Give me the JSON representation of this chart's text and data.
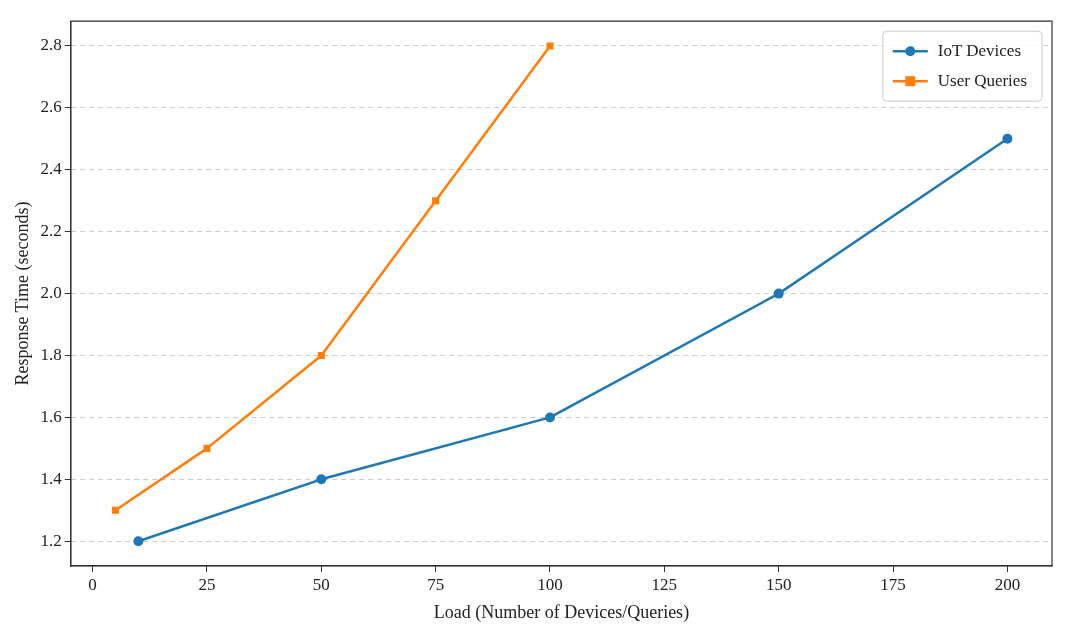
{
  "chart_data": {
    "type": "line",
    "xlabel": "Load (Number of Devices/Queries)",
    "ylabel": "Response Time (seconds)",
    "xlim": [
      -4.75,
      209.75
    ],
    "ylim": [
      1.12,
      2.88
    ],
    "xticks": [
      0,
      25,
      50,
      75,
      100,
      125,
      150,
      175,
      200
    ],
    "yticks": [
      {
        "value": 1.2,
        "label": "1.2"
      },
      {
        "value": 1.4,
        "label": "1.4"
      },
      {
        "value": 1.6,
        "label": "1.6"
      },
      {
        "value": 1.8,
        "label": "1.8"
      },
      {
        "value": 2.0,
        "label": "2.0"
      },
      {
        "value": 2.2,
        "label": "2.2"
      },
      {
        "value": 2.4,
        "label": "2.4"
      },
      {
        "value": 2.6,
        "label": "2.6"
      },
      {
        "value": 2.8,
        "label": "2.8"
      }
    ],
    "grid": "y",
    "legend": "top right",
    "line_style": "solid",
    "series": [
      {
        "name": "IoT Devices",
        "color": "#1f77b4",
        "marker": "circle",
        "x": [
          10,
          50,
          100,
          150,
          200
        ],
        "values": [
          1.2,
          1.4,
          1.6,
          2.0,
          2.5
        ]
      },
      {
        "name": "User Queries",
        "color": "#ff7f0e",
        "marker": "square",
        "x": [
          5,
          25,
          50,
          75,
          100
        ],
        "values": [
          1.3,
          1.5,
          1.8,
          2.3,
          2.8
        ]
      }
    ]
  }
}
